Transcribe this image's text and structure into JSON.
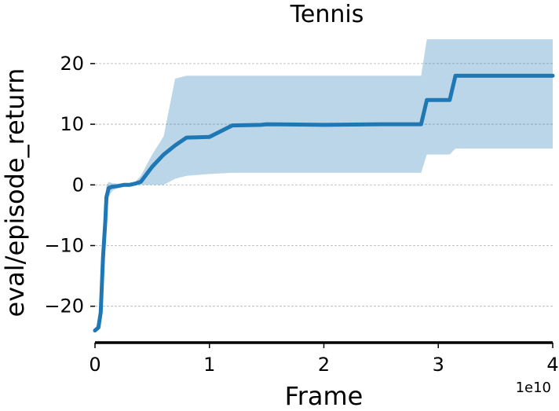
{
  "chart_data": {
    "type": "line",
    "title": "Tennis",
    "xlabel": "Frame",
    "ylabel": "eval/episode_return",
    "x_offset_label": "1e10",
    "xlim": [
      0,
      4
    ],
    "ylim": [
      -26,
      24
    ],
    "x_ticks": [
      0,
      1,
      2,
      3,
      4
    ],
    "x_tick_labels": [
      "0",
      "1",
      "2",
      "3",
      "4"
    ],
    "y_ticks": [
      -20,
      -10,
      0,
      10,
      20
    ],
    "y_tick_labels": [
      "−20",
      "−10",
      "0",
      "10",
      "20"
    ],
    "grid": "horizontal-dashed",
    "colors": {
      "series": "#1f77b4"
    },
    "series": [
      {
        "x": [
          0.0,
          0.03,
          0.05,
          0.07,
          0.09,
          0.1,
          0.12,
          0.15,
          0.2,
          0.25,
          0.3,
          0.35,
          0.4,
          0.5,
          0.6,
          0.7,
          0.8,
          1.0,
          1.2,
          1.45,
          1.5,
          2.0,
          2.5,
          2.85,
          2.9,
          3.1,
          3.15,
          4.0
        ],
        "y": [
          -24,
          -23.5,
          -21,
          -12,
          -6,
          -2,
          -0.5,
          -0.3,
          -0.2,
          0,
          0,
          0.2,
          0.5,
          3,
          5,
          6.5,
          7.8,
          7.9,
          9.8,
          9.9,
          10,
          9.9,
          10,
          10,
          14,
          14,
          18,
          18
        ],
        "band_lower": [
          -24,
          -24,
          -23,
          -15,
          -9,
          -5,
          -2,
          -1,
          -0.5,
          -0.2,
          -0.2,
          0,
          0,
          0,
          0,
          1,
          1.5,
          1.8,
          2,
          2,
          2,
          2,
          2,
          2,
          5,
          5,
          6,
          6
        ],
        "band_upper": [
          -24,
          -22,
          -17,
          -8,
          -3,
          0,
          0.5,
          0.3,
          0.2,
          0.2,
          0.3,
          0.5,
          1.5,
          5,
          8,
          17.5,
          18,
          18,
          18,
          18,
          18,
          18,
          18,
          18,
          24,
          24,
          24,
          24
        ]
      }
    ]
  }
}
